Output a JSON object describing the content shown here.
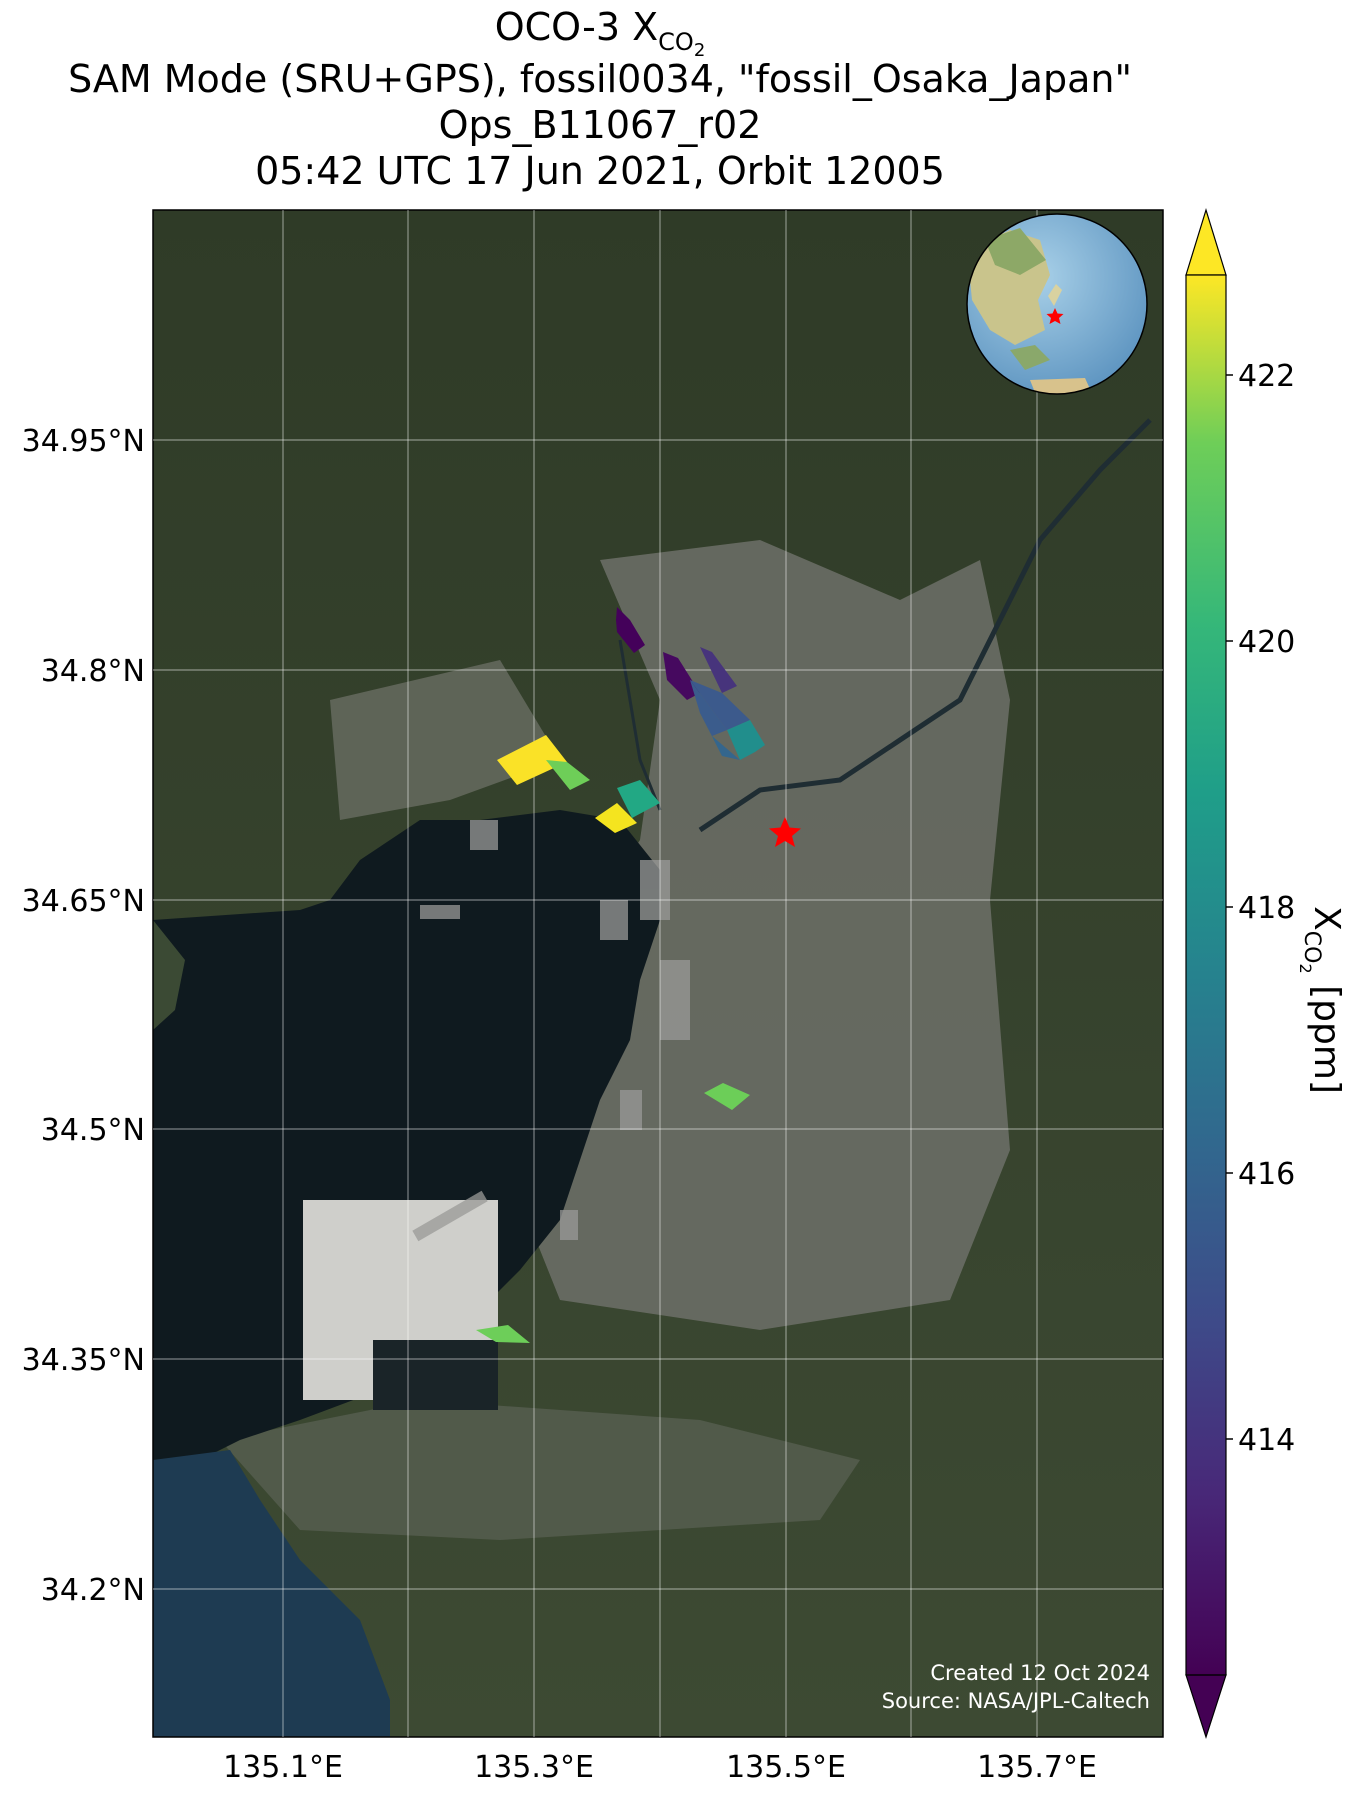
{
  "title": {
    "prefix": "OCO-3 X",
    "subscript": "CO",
    "subscript2": "2",
    "line2": "SAM Mode (SRU+GPS), fossil0034, \"fossil_Osaka_Japan\"",
    "line3": "Ops_B11067_r02",
    "line4": "05:42 UTC 17 Jun 2021, Orbit 12005"
  },
  "lat_labels": [
    "34.95°N",
    "34.8°N",
    "34.65°N",
    "34.5°N",
    "34.35°N",
    "34.2°N"
  ],
  "lon_labels": [
    "135.1°E",
    "135.3°E",
    "135.5°E",
    "135.7°E"
  ],
  "colorbar": {
    "ticks": [
      "422",
      "420",
      "418",
      "416",
      "414"
    ],
    "label_main": "X",
    "label_sub": "CO",
    "label_sub2": "2",
    "label_units": " [ppm]",
    "colormap": "viridis",
    "extend": "both"
  },
  "credit": {
    "line1": "Created 12 Oct 2024",
    "line2": "Source: NASA/JPL-Caltech"
  },
  "target_marker": {
    "color": "#ff0000",
    "icon": "star-icon"
  },
  "colors": {
    "land": "#3f4a36",
    "water": "#101a20",
    "urban": "#76787a",
    "star": "#ff0000"
  }
}
